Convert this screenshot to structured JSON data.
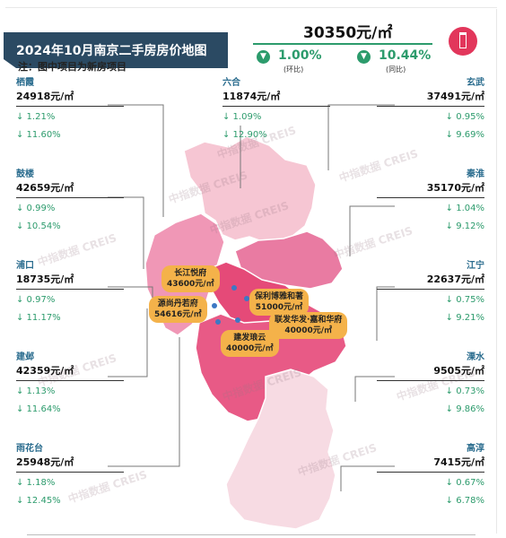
{
  "header": {
    "title": "2024年10月南京二手房房价地图",
    "note": "注：图中项目为新房项目",
    "avg_price": "30350元/㎡",
    "mom_value": "1.00%",
    "mom_label": "(环比)",
    "yoy_value": "10.44%",
    "yoy_label": "(同比)",
    "down_glyph": "▼"
  },
  "watermark": "中指数据 CREIS",
  "districts": {
    "qixia": {
      "name": "栖霞",
      "price": "24918元/㎡",
      "mom": "↓ 1.21%",
      "yoy": "↓ 11.60%"
    },
    "liuhe": {
      "name": "六合",
      "price": "11874元/㎡",
      "mom": "↓ 1.09%",
      "yoy": "↓ 12.90%"
    },
    "xuanwu": {
      "name": "玄武",
      "price": "37491元/㎡",
      "mom": "↓ 0.95%",
      "yoy": "↓ 9.69%"
    },
    "gulou": {
      "name": "鼓楼",
      "price": "42659元/㎡",
      "mom": "↓ 0.99%",
      "yoy": "↓ 10.54%"
    },
    "qinhuai": {
      "name": "秦淮",
      "price": "35170元/㎡",
      "mom": "↓ 1.04%",
      "yoy": "↓ 9.12%"
    },
    "pukou": {
      "name": "浦口",
      "price": "18735元/㎡",
      "mom": "↓ 0.97%",
      "yoy": "↓ 11.17%"
    },
    "jiangning": {
      "name": "江宁",
      "price": "22637元/㎡",
      "mom": "↓ 0.75%",
      "yoy": "↓ 9.21%"
    },
    "jianye": {
      "name": "建邺",
      "price": "42359元/㎡",
      "mom": "↓ 1.13%",
      "yoy": "↓ 11.64%"
    },
    "lishui": {
      "name": "溧水",
      "price": "9505元/㎡",
      "mom": "↓ 0.73%",
      "yoy": "↓ 9.86%"
    },
    "yuhuatai": {
      "name": "雨花台",
      "price": "25948元/㎡",
      "mom": "↓ 1.18%",
      "yoy": "↓ 12.45%"
    },
    "gaochun": {
      "name": "高淳",
      "price": "7415元/㎡",
      "mom": "↓ 0.67%",
      "yoy": "↓ 6.78%"
    }
  },
  "projects": {
    "p1": {
      "name": "长江悦府",
      "price": "43600元/㎡"
    },
    "p2": {
      "name": "保利博雅和著",
      "price": "51000元/㎡"
    },
    "p3": {
      "name": "源尚丹若府",
      "price": "54616元/㎡"
    },
    "p4": {
      "name": "联发华发·嘉和华府",
      "price": "40000元/㎡"
    },
    "p5": {
      "name": "建发琅云",
      "price": "40000元/㎡"
    }
  },
  "colors": {
    "banner": "#2b4a63",
    "accent_green": "#2c9b6c",
    "logo_red": "#e2365b",
    "district_name_blue": "#2a6c8e",
    "project_tag": "#f4b24a",
    "map_light": "#f6c6d3",
    "map_mid": "#f097b6",
    "map_core": "#e54a78",
    "map_south": "#f7dbe3"
  },
  "chart_data": {
    "type": "table",
    "title": "2024年10月南京二手房房价地图",
    "city_average": {
      "price": 30350,
      "unit": "元/㎡",
      "mom_change_pct": -1.0,
      "yoy_change_pct": -10.44
    },
    "columns": [
      "district",
      "price_yuan_per_sqm",
      "mom_change_pct",
      "yoy_change_pct"
    ],
    "rows": [
      [
        "栖霞",
        24918,
        -1.21,
        -11.6
      ],
      [
        "六合",
        11874,
        -1.09,
        -12.9
      ],
      [
        "玄武",
        37491,
        -0.95,
        -9.69
      ],
      [
        "鼓楼",
        42659,
        -0.99,
        -10.54
      ],
      [
        "秦淮",
        35170,
        -1.04,
        -9.12
      ],
      [
        "浦口",
        18735,
        -0.97,
        -11.17
      ],
      [
        "江宁",
        22637,
        -0.75,
        -9.21
      ],
      [
        "建邺",
        42359,
        -1.13,
        -11.64
      ],
      [
        "溧水",
        9505,
        -0.73,
        -9.86
      ],
      [
        "雨花台",
        25948,
        -1.18,
        -12.45
      ],
      [
        "高淳",
        7415,
        -0.67,
        -6.78
      ]
    ],
    "new_projects": [
      [
        "长江悦府",
        43600
      ],
      [
        "保利博雅和著",
        51000
      ],
      [
        "源尚丹若府",
        54616
      ],
      [
        "联发华发·嘉和华府",
        40000
      ],
      [
        "建发琅云",
        40000
      ]
    ]
  }
}
